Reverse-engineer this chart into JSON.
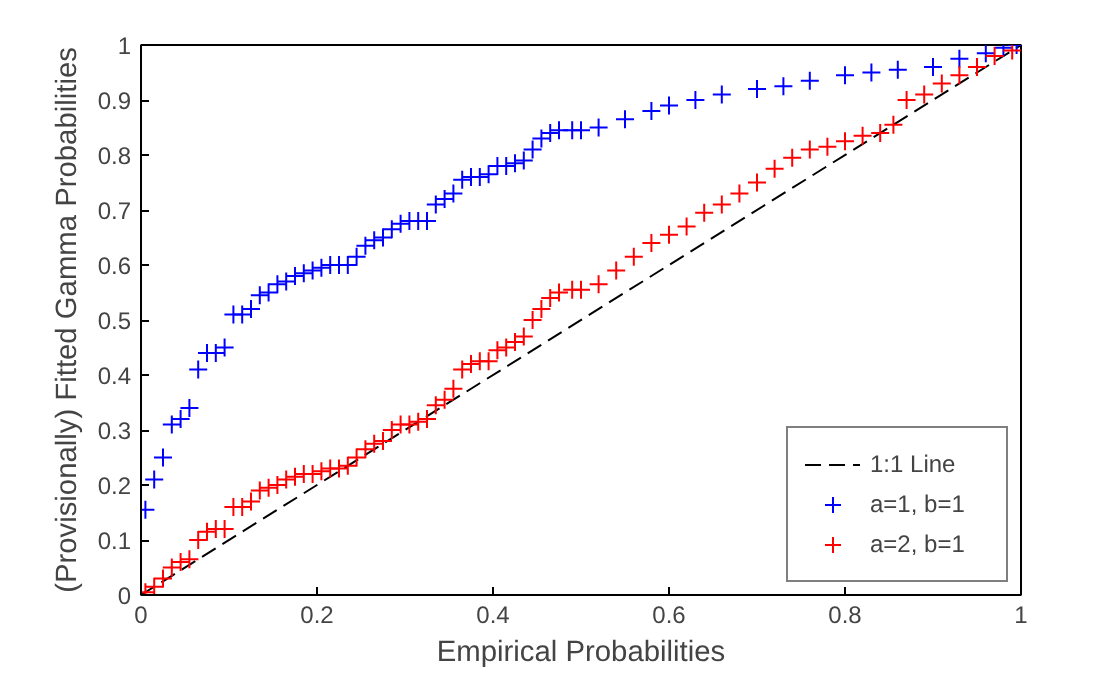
{
  "chart_data": {
    "type": "scatter",
    "xlabel": "Empirical Probabilities",
    "ylabel": "(Provisionally) Fitted Gamma Probabilities",
    "xlim": [
      0,
      1
    ],
    "ylim": [
      0,
      1
    ],
    "xticks": [
      0,
      0.2,
      0.4,
      0.6,
      0.8,
      1
    ],
    "yticks": [
      0,
      0.1,
      0.2,
      0.3,
      0.4,
      0.5,
      0.6,
      0.7,
      0.8,
      0.9,
      1
    ],
    "grid": false,
    "legend": "bottom right",
    "series": [
      {
        "name": "1:1 Line",
        "type": "line",
        "line_style": "dashed",
        "marker": "none",
        "color": "#000000",
        "x": [
          0,
          1
        ],
        "values": [
          0,
          1
        ]
      },
      {
        "name": "a=1, b=1",
        "marker": "cross",
        "color": "#0000ff",
        "x": [
          0.005,
          0.015,
          0.025,
          0.035,
          0.045,
          0.055,
          0.065,
          0.075,
          0.085,
          0.095,
          0.105,
          0.115,
          0.125,
          0.135,
          0.145,
          0.155,
          0.165,
          0.175,
          0.185,
          0.195,
          0.205,
          0.215,
          0.225,
          0.235,
          0.245,
          0.255,
          0.265,
          0.275,
          0.285,
          0.295,
          0.305,
          0.315,
          0.325,
          0.335,
          0.345,
          0.355,
          0.365,
          0.375,
          0.385,
          0.395,
          0.405,
          0.415,
          0.425,
          0.435,
          0.445,
          0.455,
          0.465,
          0.475,
          0.49,
          0.5,
          0.52,
          0.55,
          0.58,
          0.6,
          0.63,
          0.66,
          0.7,
          0.73,
          0.76,
          0.8,
          0.83,
          0.86,
          0.9,
          0.93,
          0.96,
          0.98,
          0.995
        ],
        "values": [
          0.155,
          0.21,
          0.25,
          0.31,
          0.32,
          0.34,
          0.41,
          0.44,
          0.44,
          0.45,
          0.51,
          0.51,
          0.52,
          0.545,
          0.55,
          0.565,
          0.57,
          0.58,
          0.585,
          0.59,
          0.595,
          0.6,
          0.6,
          0.6,
          0.615,
          0.635,
          0.645,
          0.65,
          0.665,
          0.675,
          0.68,
          0.68,
          0.68,
          0.71,
          0.72,
          0.73,
          0.755,
          0.76,
          0.76,
          0.765,
          0.78,
          0.78,
          0.785,
          0.79,
          0.81,
          0.83,
          0.84,
          0.845,
          0.845,
          0.845,
          0.85,
          0.865,
          0.88,
          0.89,
          0.9,
          0.91,
          0.92,
          0.925,
          0.935,
          0.945,
          0.95,
          0.955,
          0.96,
          0.975,
          0.985,
          0.995,
          1.0
        ]
      },
      {
        "name": "a=2, b=1",
        "marker": "cross",
        "color": "#ff0000",
        "x": [
          0.005,
          0.015,
          0.025,
          0.035,
          0.045,
          0.055,
          0.065,
          0.075,
          0.085,
          0.095,
          0.105,
          0.115,
          0.125,
          0.135,
          0.145,
          0.155,
          0.165,
          0.175,
          0.185,
          0.195,
          0.205,
          0.215,
          0.225,
          0.235,
          0.245,
          0.255,
          0.265,
          0.275,
          0.285,
          0.295,
          0.305,
          0.315,
          0.325,
          0.335,
          0.345,
          0.355,
          0.365,
          0.375,
          0.385,
          0.395,
          0.405,
          0.415,
          0.425,
          0.435,
          0.445,
          0.455,
          0.465,
          0.475,
          0.49,
          0.5,
          0.52,
          0.54,
          0.56,
          0.58,
          0.6,
          0.62,
          0.64,
          0.66,
          0.68,
          0.7,
          0.72,
          0.74,
          0.76,
          0.78,
          0.8,
          0.82,
          0.84,
          0.855,
          0.87,
          0.89,
          0.91,
          0.93,
          0.95,
          0.97,
          0.99
        ],
        "values": [
          0.005,
          0.015,
          0.03,
          0.05,
          0.06,
          0.065,
          0.1,
          0.115,
          0.12,
          0.12,
          0.16,
          0.16,
          0.17,
          0.19,
          0.195,
          0.2,
          0.21,
          0.215,
          0.22,
          0.22,
          0.225,
          0.23,
          0.23,
          0.235,
          0.25,
          0.265,
          0.275,
          0.28,
          0.3,
          0.31,
          0.31,
          0.315,
          0.32,
          0.345,
          0.355,
          0.375,
          0.41,
          0.42,
          0.425,
          0.425,
          0.445,
          0.45,
          0.46,
          0.47,
          0.5,
          0.52,
          0.54,
          0.55,
          0.555,
          0.555,
          0.565,
          0.59,
          0.615,
          0.64,
          0.655,
          0.67,
          0.695,
          0.71,
          0.73,
          0.75,
          0.775,
          0.795,
          0.81,
          0.815,
          0.825,
          0.835,
          0.84,
          0.855,
          0.9,
          0.91,
          0.93,
          0.945,
          0.96,
          0.98,
          0.99
        ]
      }
    ]
  }
}
